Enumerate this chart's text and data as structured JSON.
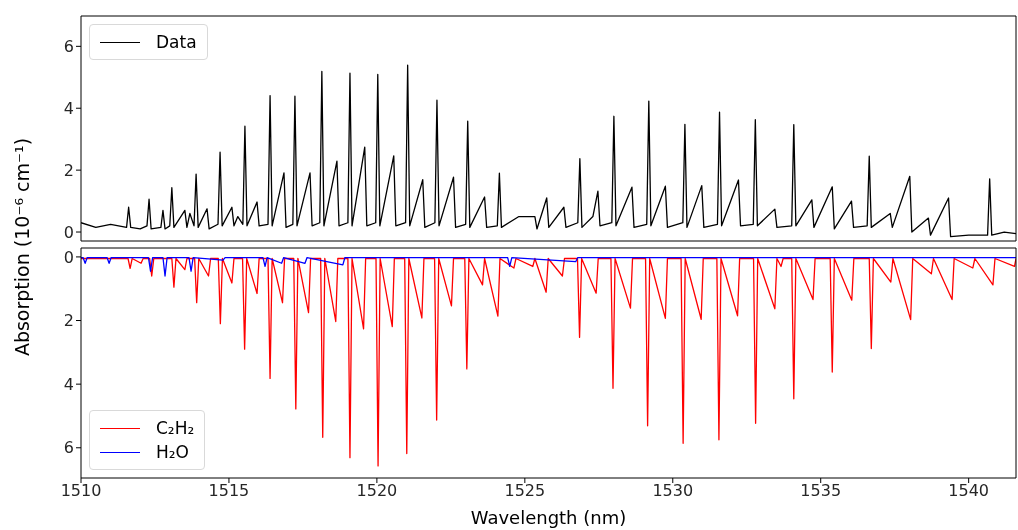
{
  "chart_data": [
    {
      "type": "line",
      "ylabel": "Absorption (10⁻⁶ cm⁻¹)",
      "xlim": [
        1510,
        1541.6
      ],
      "xticks": [
        1510,
        1515,
        1520,
        1525,
        1530,
        1535,
        1540
      ],
      "ylim": [
        -0.29,
        6.98
      ],
      "yticks": [
        0,
        2,
        4,
        6
      ],
      "tick_labels": "y",
      "legend": "top left",
      "series": [
        {
          "name": "Data",
          "color": "#000000",
          "x": [
            1510.0,
            1510.5,
            1511.0,
            1511.54,
            1511.61,
            1511.68,
            1512.0,
            1512.23,
            1512.3,
            1512.37,
            1512.7,
            1512.77,
            1512.84,
            1513.0,
            1513.07,
            1513.14,
            1513.51,
            1513.58,
            1513.68,
            1513.82,
            1513.89,
            1513.96,
            1514.26,
            1514.33,
            1514.63,
            1514.7,
            1514.77,
            1515.1,
            1515.17,
            1515.3,
            1515.47,
            1515.54,
            1515.61,
            1515.95,
            1516.02,
            1516.32,
            1516.39,
            1516.46,
            1516.86,
            1516.93,
            1517.16,
            1517.23,
            1517.3,
            1517.74,
            1517.81,
            1518.07,
            1518.14,
            1518.21,
            1518.65,
            1518.72,
            1519.02,
            1519.09,
            1519.16,
            1519.59,
            1519.66,
            1519.96,
            1520.03,
            1520.1,
            1520.57,
            1520.64,
            1520.97,
            1521.04,
            1521.11,
            1521.55,
            1521.62,
            1521.96,
            1522.03,
            1522.1,
            1522.59,
            1522.66,
            1523.0,
            1523.07,
            1523.14,
            1523.64,
            1523.71,
            1524.07,
            1524.14,
            1524.21,
            1524.8,
            1525.34,
            1525.41,
            1525.74,
            1525.81,
            1526.32,
            1526.39,
            1526.79,
            1526.86,
            1526.93,
            1527.3,
            1527.47,
            1527.54,
            1527.94,
            1528.01,
            1528.08,
            1528.62,
            1528.69,
            1529.12,
            1529.19,
            1529.26,
            1529.75,
            1529.82,
            1530.34,
            1530.41,
            1530.48,
            1530.98,
            1531.05,
            1531.51,
            1531.58,
            1531.65,
            1532.22,
            1532.29,
            1532.72,
            1532.79,
            1532.86,
            1533.45,
            1533.52,
            1534.02,
            1534.09,
            1534.16,
            1534.7,
            1534.77,
            1535.39,
            1535.46,
            1536.04,
            1536.11,
            1536.57,
            1536.64,
            1536.71,
            1537.35,
            1537.42,
            1538.01,
            1538.08,
            1538.64,
            1538.71,
            1539.32,
            1539.39,
            1540.0,
            1540.64,
            1540.71,
            1540.78,
            1541.2,
            1541.6
          ],
          "values": [
            0.3,
            0.15,
            0.25,
            0.15,
            0.8,
            0.15,
            0.1,
            0.2,
            1.06,
            0.1,
            0.15,
            0.7,
            0.1,
            0.2,
            1.43,
            0.15,
            0.7,
            0.15,
            0.6,
            0.2,
            1.87,
            0.15,
            0.75,
            0.1,
            0.25,
            2.58,
            0.2,
            0.8,
            0.2,
            0.5,
            0.25,
            3.42,
            0.2,
            0.97,
            0.2,
            0.25,
            4.41,
            0.2,
            1.91,
            0.15,
            0.25,
            4.39,
            0.2,
            1.91,
            0.2,
            0.3,
            5.19,
            0.2,
            2.29,
            0.2,
            0.3,
            5.13,
            0.2,
            2.74,
            0.2,
            0.3,
            5.09,
            0.2,
            2.46,
            0.2,
            0.3,
            5.39,
            0.2,
            1.69,
            0.15,
            0.3,
            4.26,
            0.2,
            1.77,
            0.15,
            0.25,
            3.58,
            0.15,
            1.13,
            0.15,
            0.2,
            1.9,
            0.15,
            0.5,
            0.5,
            0.1,
            1.1,
            0.15,
            0.8,
            0.15,
            0.3,
            2.37,
            0.15,
            0.5,
            1.32,
            0.2,
            0.3,
            3.74,
            0.2,
            1.45,
            0.15,
            0.25,
            4.23,
            0.2,
            1.48,
            0.15,
            0.3,
            3.48,
            0.15,
            1.5,
            0.15,
            0.25,
            3.87,
            0.2,
            1.68,
            0.2,
            0.25,
            3.63,
            0.2,
            0.74,
            0.15,
            0.2,
            3.47,
            0.2,
            1.04,
            0.15,
            1.46,
            0.1,
            1.0,
            0.15,
            0.2,
            2.45,
            0.15,
            0.6,
            0.15,
            1.8,
            0.0,
            0.45,
            -0.1,
            1.1,
            -0.15,
            -0.1,
            -0.1,
            1.72,
            -0.1,
            0.0,
            -0.05
          ]
        }
      ]
    },
    {
      "type": "line",
      "xlabel": "Wavelength (nm)",
      "xlim": [
        1510,
        1541.6
      ],
      "xticks": [
        1510,
        1515,
        1520,
        1525,
        1530,
        1535,
        1540
      ],
      "ylim": [
        6.95,
        -0.28
      ],
      "yticks": [
        0,
        2,
        4,
        6
      ],
      "legend": "bottom left",
      "series": [
        {
          "name": "C₂H₂",
          "color": "#ff0000",
          "x": [
            1510.0,
            1511.59,
            1511.66,
            1511.73,
            1512.03,
            1512.1,
            1512.32,
            1512.39,
            1512.46,
            1513.07,
            1513.14,
            1513.21,
            1513.51,
            1513.58,
            1513.84,
            1513.91,
            1513.98,
            1514.31,
            1514.38,
            1514.64,
            1514.71,
            1514.78,
            1515.1,
            1515.17,
            1515.46,
            1515.53,
            1515.6,
            1515.95,
            1516.02,
            1516.32,
            1516.39,
            1516.46,
            1516.81,
            1516.88,
            1517.19,
            1517.26,
            1517.33,
            1517.69,
            1517.76,
            1518.1,
            1518.17,
            1518.24,
            1518.61,
            1518.68,
            1519.02,
            1519.09,
            1519.16,
            1519.55,
            1519.62,
            1519.97,
            1520.04,
            1520.11,
            1520.52,
            1520.59,
            1520.94,
            1521.01,
            1521.08,
            1521.52,
            1521.59,
            1521.95,
            1522.02,
            1522.09,
            1522.52,
            1522.59,
            1522.97,
            1523.04,
            1523.11,
            1523.57,
            1523.64,
            1524.09,
            1524.16,
            1524.63,
            1524.7,
            1525.27,
            1525.34,
            1525.72,
            1525.79,
            1526.27,
            1526.34,
            1526.78,
            1526.85,
            1526.92,
            1527.41,
            1527.48,
            1527.91,
            1527.98,
            1528.05,
            1528.57,
            1528.64,
            1529.08,
            1529.15,
            1529.22,
            1529.75,
            1529.82,
            1530.28,
            1530.35,
            1530.42,
            1530.96,
            1531.03,
            1531.49,
            1531.56,
            1531.63,
            1532.19,
            1532.26,
            1532.73,
            1532.8,
            1532.87,
            1533.45,
            1533.52,
            1533.66,
            1533.73,
            1534.02,
            1534.09,
            1534.16,
            1534.74,
            1534.81,
            1535.32,
            1535.39,
            1535.46,
            1536.05,
            1536.12,
            1536.64,
            1536.71,
            1536.78,
            1537.37,
            1537.44,
            1538.04,
            1538.11,
            1538.74,
            1538.81,
            1539.44,
            1539.51,
            1540.14,
            1540.21,
            1540.82,
            1540.89,
            1541.55,
            1541.6
          ],
          "values": [
            0.05,
            0.05,
            0.36,
            0.05,
            0.2,
            0.05,
            0.05,
            0.6,
            0.05,
            0.05,
            0.95,
            0.05,
            0.4,
            0.05,
            0.05,
            1.44,
            0.05,
            0.6,
            0.05,
            0.05,
            2.1,
            0.05,
            0.82,
            0.05,
            0.05,
            2.9,
            0.05,
            1.15,
            0.05,
            0.05,
            3.82,
            0.05,
            1.44,
            0.05,
            0.05,
            4.78,
            0.05,
            1.75,
            0.05,
            0.05,
            5.67,
            0.05,
            2.03,
            0.05,
            0.05,
            6.31,
            0.05,
            2.26,
            0.05,
            0.05,
            6.57,
            0.05,
            2.19,
            0.05,
            0.05,
            6.18,
            0.05,
            1.92,
            0.05,
            0.05,
            5.13,
            0.05,
            1.54,
            0.05,
            0.05,
            3.52,
            0.05,
            0.88,
            0.05,
            1.86,
            0.05,
            0.35,
            0.05,
            0.3,
            0.05,
            1.11,
            0.05,
            0.6,
            0.05,
            0.05,
            2.53,
            0.05,
            1.14,
            0.05,
            0.05,
            4.13,
            0.05,
            1.61,
            0.05,
            0.05,
            5.31,
            0.05,
            1.93,
            0.05,
            0.05,
            5.86,
            0.05,
            1.96,
            0.05,
            0.05,
            5.75,
            0.05,
            1.85,
            0.05,
            0.05,
            5.23,
            0.05,
            1.63,
            0.05,
            0.3,
            0.05,
            0.05,
            4.46,
            0.05,
            1.34,
            0.05,
            0.05,
            3.62,
            0.05,
            1.36,
            0.05,
            0.05,
            2.88,
            0.05,
            0.79,
            0.05,
            1.97,
            0.05,
            0.53,
            0.05,
            1.34,
            0.05,
            0.35,
            0.05,
            0.88,
            0.05,
            0.3,
            0.05
          ]
        },
        {
          "name": "H₂O",
          "color": "#0000ff",
          "x": [
            1510.0,
            1510.07,
            1510.14,
            1510.21,
            1510.88,
            1510.95,
            1511.02,
            1512.28,
            1512.35,
            1512.42,
            1512.77,
            1512.84,
            1512.91,
            1513.65,
            1513.72,
            1513.79,
            1514.8,
            1514.87,
            1516.15,
            1516.22,
            1516.29,
            1516.78,
            1516.85,
            1517.57,
            1517.64,
            1518.85,
            1518.92,
            1524.42,
            1524.49,
            1524.56,
            1526.72,
            1526.79,
            1541.6
          ],
          "values": [
            0.02,
            0.02,
            0.2,
            0.02,
            0.02,
            0.2,
            0.02,
            0.02,
            0.45,
            0.02,
            0.02,
            0.6,
            0.02,
            0.02,
            0.45,
            0.02,
            0.1,
            0.02,
            0.02,
            0.3,
            0.02,
            0.2,
            0.02,
            0.2,
            0.02,
            0.25,
            0.02,
            0.02,
            0.3,
            0.02,
            0.15,
            0.02,
            0.02
          ]
        }
      ]
    }
  ]
}
